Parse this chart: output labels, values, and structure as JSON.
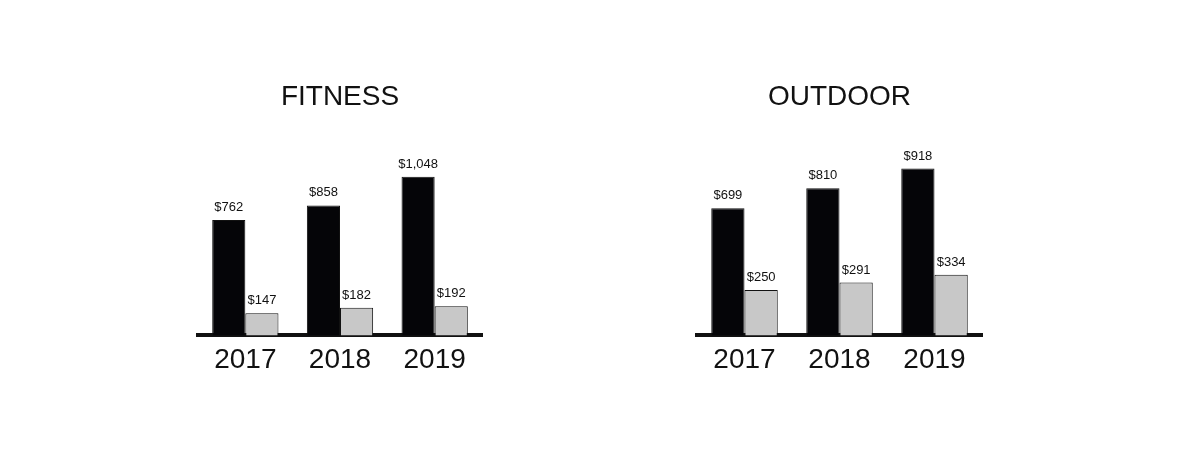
{
  "chart_data": [
    {
      "type": "bar",
      "title": "FITNESS",
      "categories": [
        "2017",
        "2018",
        "2019"
      ],
      "series": [
        {
          "color": "#050508",
          "values": [
            762,
            858,
            1048
          ],
          "value_labels": [
            "$762",
            "$858",
            "$1,048"
          ]
        },
        {
          "color": "#c8c8c8",
          "values": [
            147,
            182,
            192
          ],
          "value_labels": [
            "$147",
            "$182",
            "$192"
          ]
        }
      ],
      "grid": false,
      "legend": false,
      "tick_labels": "x"
    },
    {
      "type": "bar",
      "title": "OUTDOOR",
      "categories": [
        "2017",
        "2018",
        "2019"
      ],
      "series": [
        {
          "color": "#050508",
          "values": [
            699,
            810,
            918
          ],
          "value_labels": [
            "$699",
            "$810",
            "$918"
          ]
        },
        {
          "color": "#c8c8c8",
          "values": [
            250,
            291,
            334
          ],
          "value_labels": [
            "$250",
            "$291",
            "$334"
          ]
        }
      ],
      "grid": false,
      "legend": false,
      "tick_labels": "x"
    }
  ]
}
